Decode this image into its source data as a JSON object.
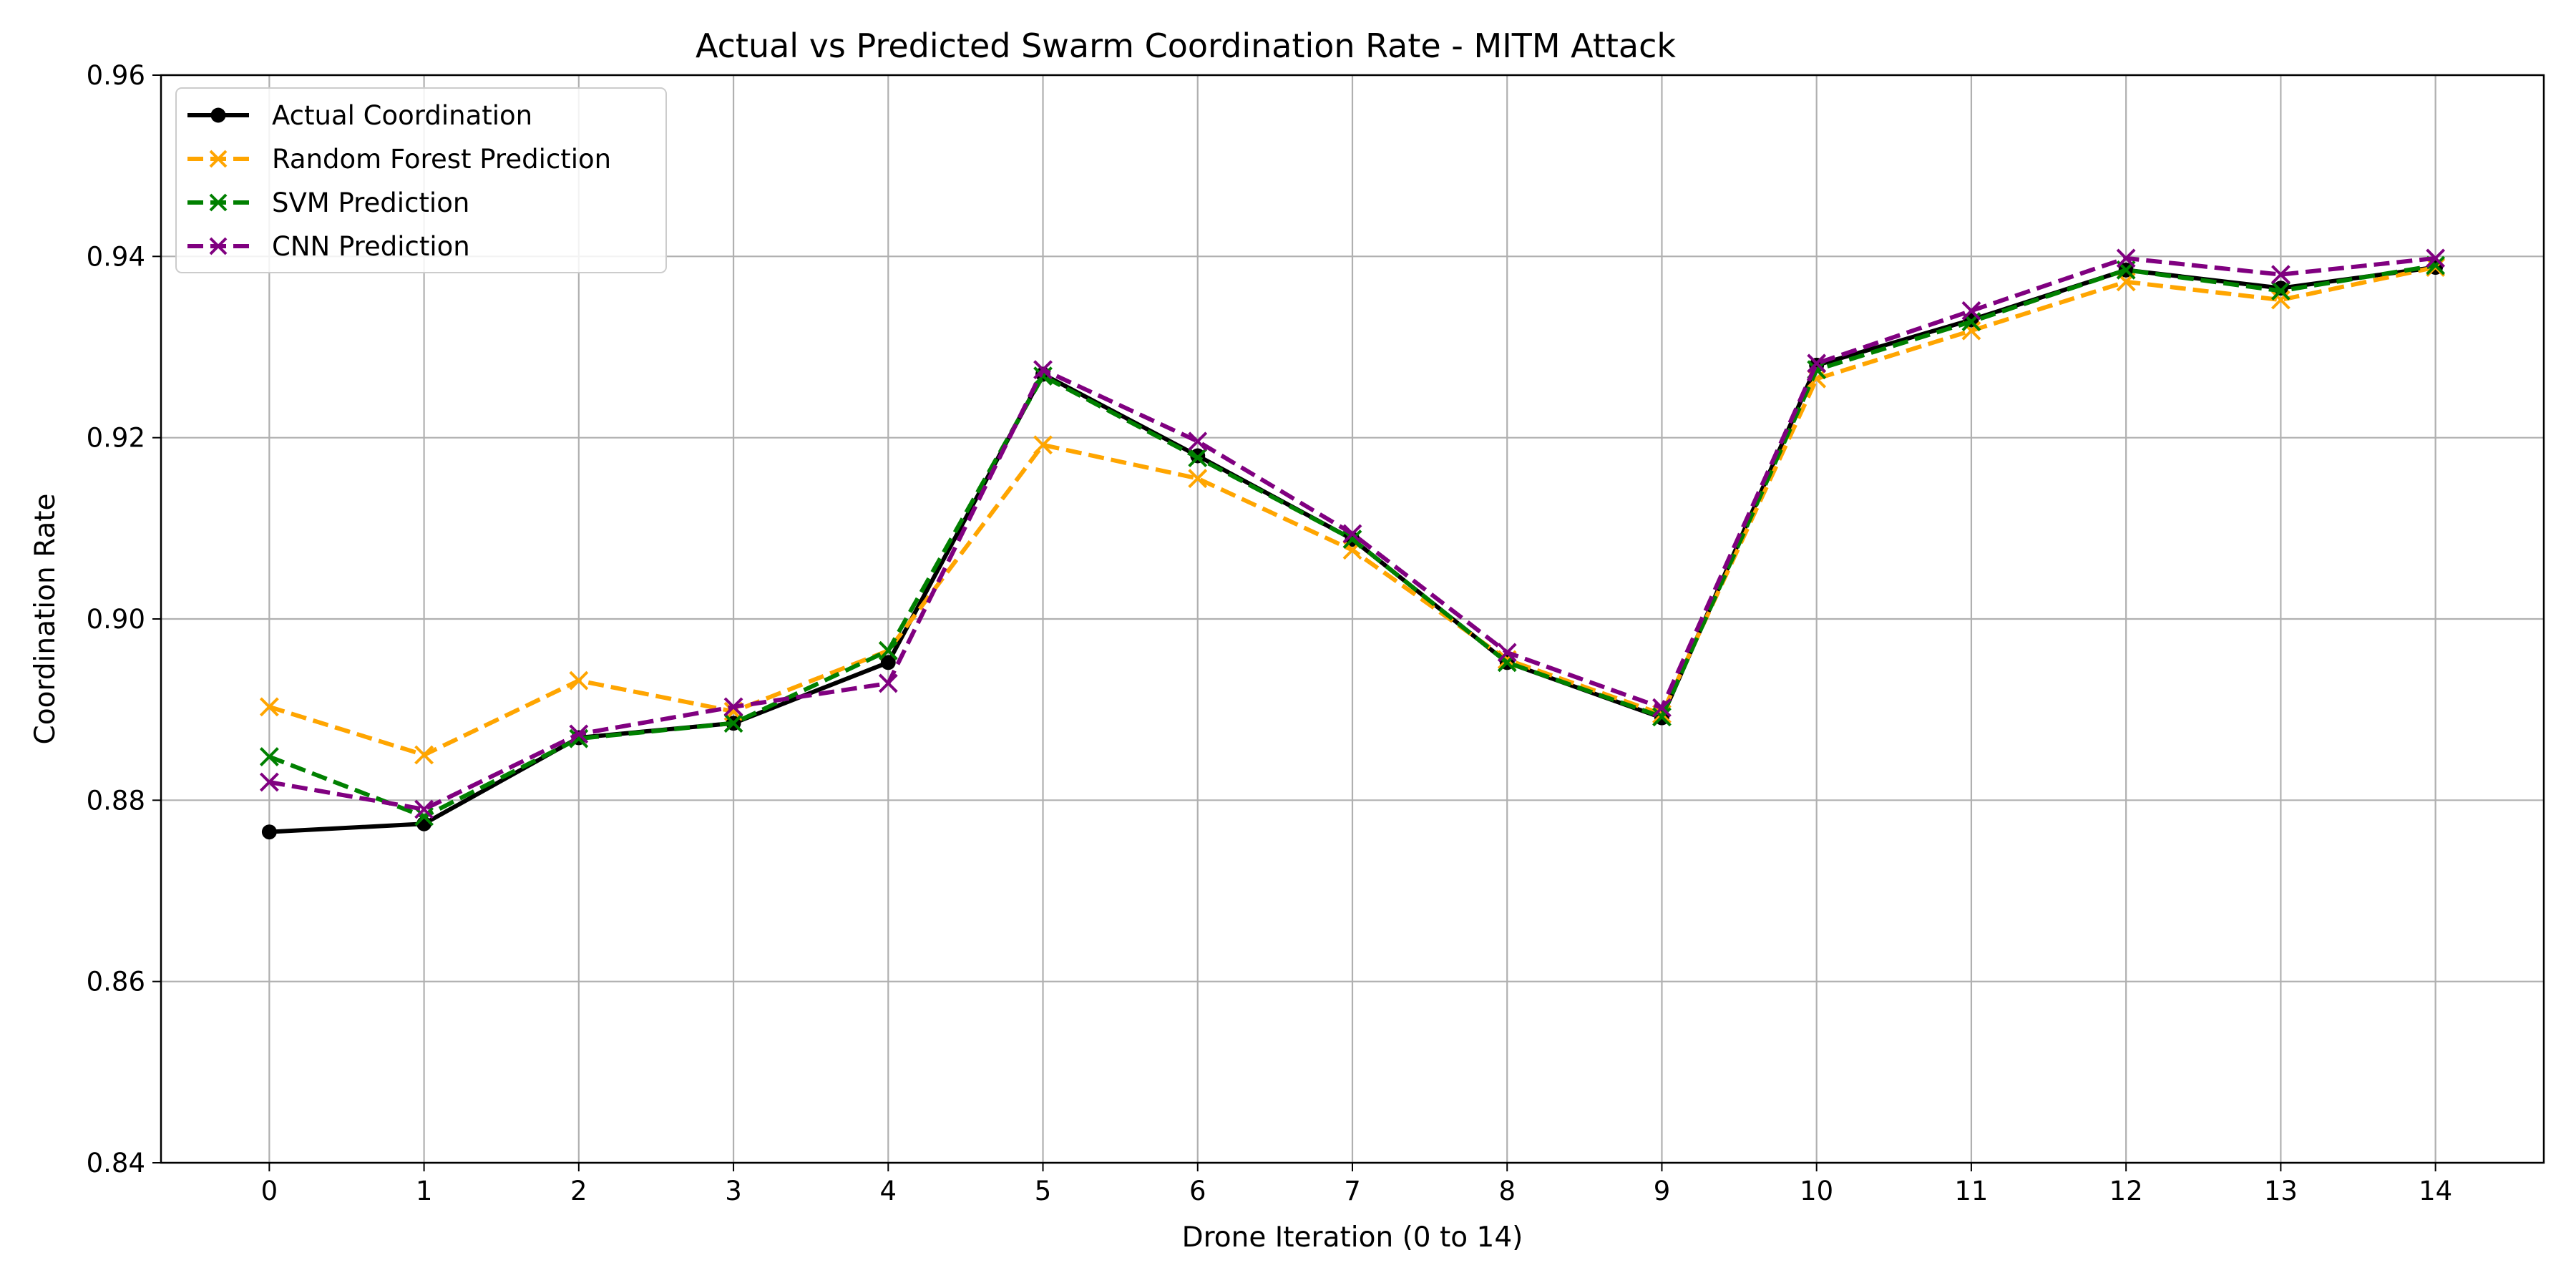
{
  "chart_data": {
    "type": "line",
    "title": "Actual vs Predicted Swarm Coordination Rate - MITM Attack",
    "xlabel": "Drone Iteration (0 to 14)",
    "ylabel": "Coordination Rate",
    "x": [
      0,
      1,
      2,
      3,
      4,
      5,
      6,
      7,
      8,
      9,
      10,
      11,
      12,
      13,
      14
    ],
    "xlim": [
      -0.7,
      14.7
    ],
    "ylim": [
      0.84,
      0.96
    ],
    "x_ticks": [
      "0",
      "1",
      "2",
      "3",
      "4",
      "5",
      "6",
      "7",
      "8",
      "9",
      "10",
      "11",
      "12",
      "13",
      "14"
    ],
    "y_ticks": [
      "0.84",
      "0.86",
      "0.88",
      "0.90",
      "0.92",
      "0.94",
      "0.96"
    ],
    "y_tick_values": [
      0.84,
      0.86,
      0.88,
      0.9,
      0.92,
      0.94,
      0.96
    ],
    "grid": true,
    "legend_position": "top-left",
    "series": [
      {
        "name": "Actual Coordination",
        "color": "#000000",
        "line_style": "solid",
        "marker": "circle",
        "values": [
          0.8765,
          0.8774,
          0.8869,
          0.8885,
          0.8952,
          0.927,
          0.918,
          0.9088,
          0.8952,
          0.8891,
          0.928,
          0.933,
          0.9385,
          0.9365,
          0.9388
        ]
      },
      {
        "name": "Random Forest Prediction",
        "color": "#FFA500",
        "line_style": "dashed",
        "marker": "x",
        "values": [
          0.8903,
          0.885,
          0.8932,
          0.8898,
          0.8965,
          0.9192,
          0.9155,
          0.9076,
          0.8955,
          0.8895,
          0.9265,
          0.9318,
          0.9372,
          0.9352,
          0.9388
        ]
      },
      {
        "name": "SVM Prediction",
        "color": "#008000",
        "line_style": "dashed",
        "marker": "x",
        "values": [
          0.8848,
          0.8782,
          0.8868,
          0.8885,
          0.8965,
          0.9268,
          0.9178,
          0.9088,
          0.8952,
          0.8892,
          0.9275,
          0.9328,
          0.9385,
          0.9362,
          0.939
        ]
      },
      {
        "name": "CNN Prediction",
        "color": "#800080",
        "line_style": "dashed",
        "marker": "x",
        "values": [
          0.882,
          0.879,
          0.8873,
          0.8903,
          0.8929,
          0.9275,
          0.9196,
          0.9094,
          0.8963,
          0.8902,
          0.9282,
          0.934,
          0.9398,
          0.938,
          0.9398
        ]
      }
    ]
  }
}
